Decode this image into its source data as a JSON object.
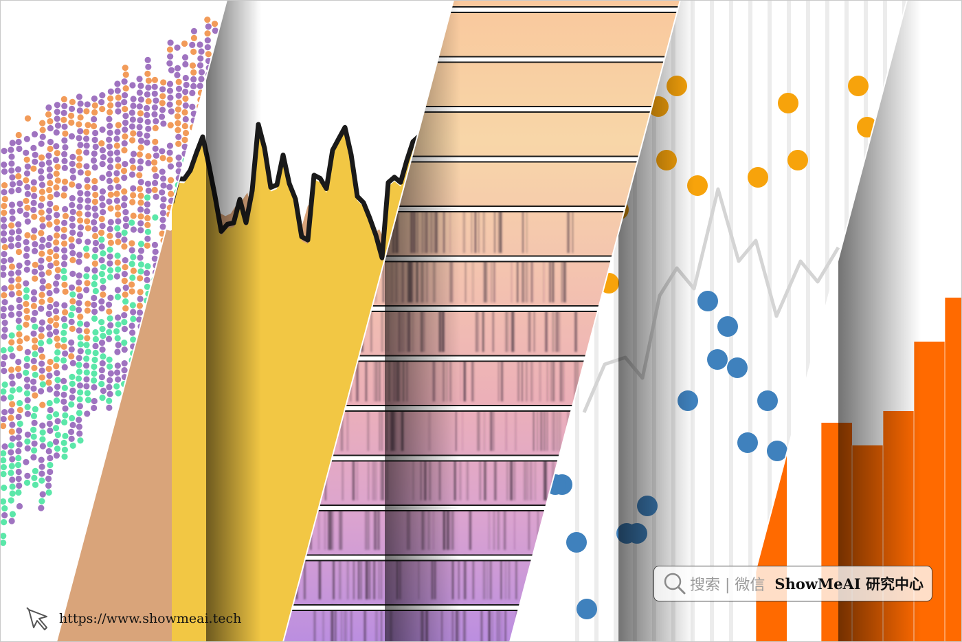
{
  "watermark": {
    "search_hint": "搜索 | 微信",
    "brand": "ShowMeAI 研究中心",
    "url": "https://www.showmeai.tech",
    "search_icon": "search-icon",
    "cursor_icon": "cursor-arrow-icon"
  },
  "colors": {
    "scatter_purple": "#8e5bb5",
    "scatter_orange": "#f08a3c",
    "scatter_green": "#3ee39a",
    "area_line": "#1a1a1a",
    "area_yellow": "#f2c744",
    "area_tan": "#d9a47a",
    "area_green": "#98c08a",
    "area_olive": "#b29b72",
    "area_pink": "#d98f95",
    "lollipop_orange": "#f7a30b",
    "lollipop_blue": "#3f81bd",
    "bar_orange": "#ff6a00"
  }
}
